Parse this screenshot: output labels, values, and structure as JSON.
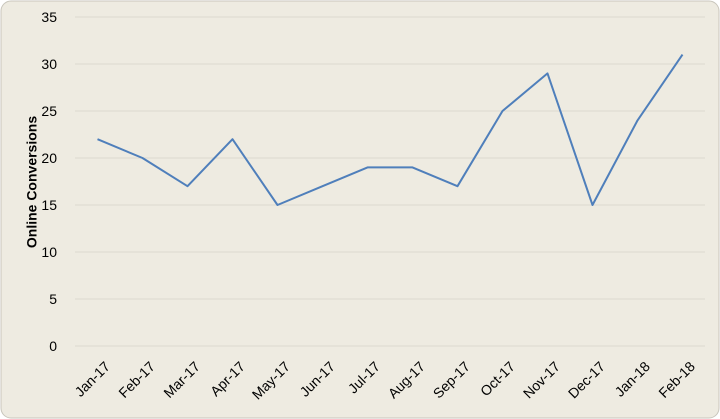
{
  "chart_data": {
    "type": "line",
    "y_label": "Online Conversions",
    "categories": [
      "Jan-17",
      "Feb-17",
      "Mar-17",
      "Apr-17",
      "May-17",
      "Jun-17",
      "Jul-17",
      "Aug-17",
      "Sep-17",
      "Oct-17",
      "Nov-17",
      "Dec-17",
      "Jan-18",
      "Feb-18"
    ],
    "values": [
      22,
      20,
      17,
      22,
      15,
      17,
      19,
      19,
      17,
      25,
      29,
      15,
      24,
      31
    ],
    "color": "#4f7fbb",
    "ylim": [
      0,
      35
    ],
    "yticks": [
      0,
      5,
      10,
      15,
      20,
      25,
      30,
      35
    ],
    "grid": true
  }
}
